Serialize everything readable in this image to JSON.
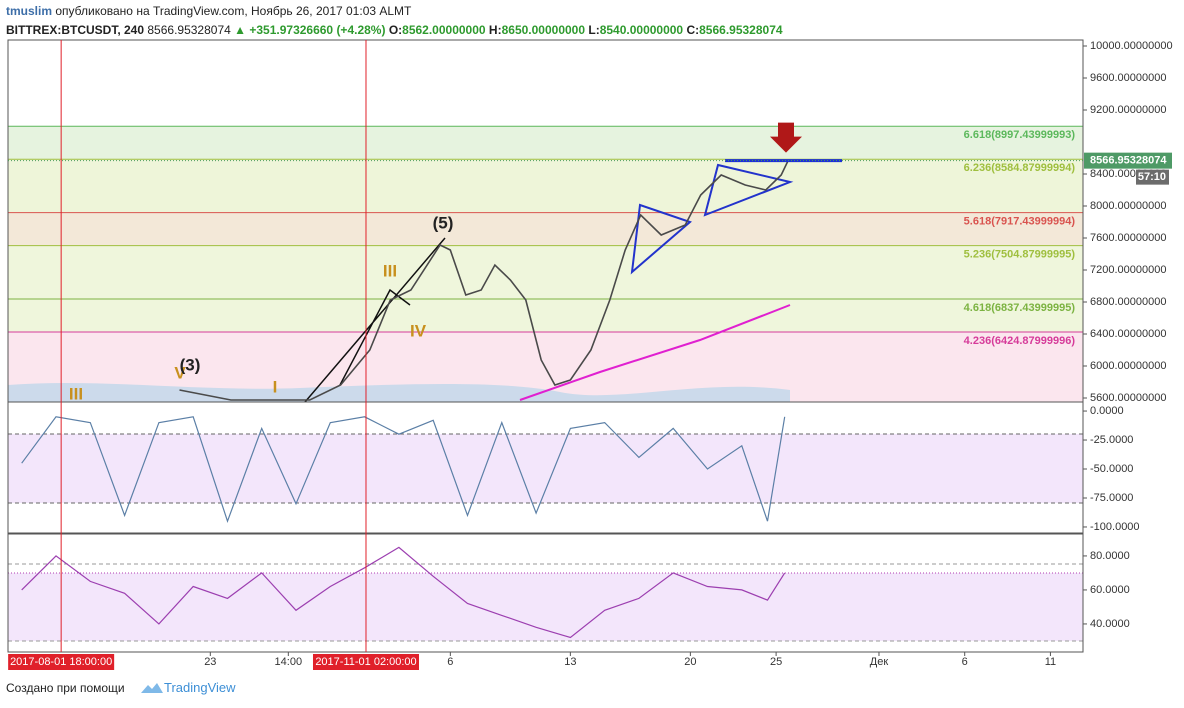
{
  "header": {
    "user": "tmuslim",
    "published": "опубликовано на TradingView.com, Ноябрь 26, 2017 01:03 ALMT",
    "symbol": "BITTREX:BTCUSDT, 240",
    "last": "8566.95328074",
    "change": "▲ +351.97326660 (+4.28%)",
    "o_label": "O:",
    "o": "8562.00000000",
    "h_label": "H:",
    "h": "8650.00000000",
    "l_label": "L:",
    "l": "8540.00000000",
    "c_label": "C:",
    "c": "8566.95328074"
  },
  "chart_data": [
    {
      "type": "line",
      "xlim": [
        -19.8,
        42.9
      ],
      "xticks": [
        {
          "value": -16.7,
          "label": "2017-08-01 18:00:00",
          "highlight": true
        },
        {
          "value": -8,
          "label": "23"
        },
        {
          "value": -3.45,
          "label": "14:00"
        },
        {
          "value": 1.08,
          "label": "2017-11-01 02:00:00",
          "highlight": true
        },
        6,
        13,
        20,
        25,
        {
          "value": 31,
          "label": "Дек"
        },
        {
          "value": 36,
          "label": "6"
        },
        {
          "value": 41,
          "label": "11"
        }
      ],
      "ylim": [
        5550,
        10075
      ],
      "yticks": [
        {
          "value": 10000,
          "label": "10000.00000000"
        },
        {
          "value": 9600,
          "label": "9600.00000000"
        },
        {
          "value": 9200,
          "label": "9200.00000000"
        },
        {
          "value": 8400,
          "label": "8400.00000000"
        },
        {
          "value": 8000,
          "label": "8000.00000000"
        },
        {
          "value": 7600,
          "label": "7600.00000000"
        },
        {
          "value": 7200,
          "label": "7200.00000000"
        },
        {
          "value": 6800,
          "label": "6800.00000000"
        },
        {
          "value": 6400,
          "label": "6400.00000000"
        },
        {
          "value": 6000,
          "label": "6000.00000000"
        },
        {
          "value": 5600,
          "label": "5600.00000000"
        }
      ],
      "x": [
        -9.8,
        -6.8,
        -2.2,
        -0.4,
        1.3,
        2.5,
        3.7,
        5.4,
        6,
        6.9,
        7.8,
        8.6,
        9.5,
        10.4,
        11.3,
        12.1,
        13,
        14.2,
        15.3,
        16.2,
        17.1,
        18.3,
        19.7,
        20.6,
        21.8,
        23.2,
        24.4,
        25.3,
        25.7
      ],
      "series": [
        {
          "name": "BTCUSDT",
          "color": "#4a4a4a",
          "values": [
            5700,
            5575,
            5575,
            5763,
            6200,
            6825,
            6950,
            7512,
            7450,
            6888,
            6950,
            7262,
            7075,
            6825,
            6075,
            5763,
            5825,
            6200,
            6825,
            7450,
            7887,
            7637,
            7762,
            8137,
            8387,
            8262,
            8200,
            8387,
            8566.95328074
          ]
        }
      ],
      "fib_levels": [
        {
          "value": 8997.43999993,
          "label": "6.618(8997.43999993)",
          "color": "#5cb85c",
          "fill": "#e6f3df"
        },
        {
          "value": 8584.87999994,
          "label": "6.236(8584.87999994)",
          "color": "#9fbf3f",
          "fill": "#eef5d9"
        },
        {
          "value": 7917.43999994,
          "label": "5.618(7917.43999994)",
          "color": "#d9534f",
          "fill": "#f3e8d8"
        },
        {
          "value": 7504.87999995,
          "label": "5.236(7504.87999995)",
          "color": "#9fbf3f",
          "fill": "#eff6dc"
        },
        {
          "value": 6837.43999995,
          "label": "4.618(6837.43999995)",
          "color": "#7cb342",
          "fill": "#eff6dc"
        },
        {
          "value": 6424.87999996,
          "label": "4.236(6424.87999996)",
          "color": "#d63c9a",
          "fill": "#fbe6ee"
        }
      ],
      "annotations": [
        "(5)",
        "III",
        "IV",
        "I",
        "V",
        "(3)",
        "III"
      ],
      "price_label": "8566.95328074",
      "countdown": "57:10"
    },
    {
      "type": "line",
      "ylim": [
        -105.2,
        7.8
      ],
      "yticks": [
        {
          "value": 0,
          "label": "0.0000"
        },
        {
          "value": -25,
          "label": "-25.0000"
        },
        {
          "value": -50,
          "label": "-50.0000"
        },
        {
          "value": -75,
          "label": "-75.0000"
        },
        {
          "value": -100,
          "label": "-100.0000"
        }
      ],
      "x": [
        -19,
        -17,
        -15,
        -13,
        -11,
        -9,
        -7,
        -5,
        -3,
        -1,
        1,
        3,
        5,
        7,
        9,
        11,
        13,
        15,
        17,
        19,
        21,
        23,
        24.5,
        25.5
      ],
      "series": [
        {
          "name": "%R",
          "color": "#5b7fa6",
          "values": [
            -45,
            -5,
            -10,
            -90,
            -10,
            -5,
            -95,
            -15,
            -80,
            -10,
            -5,
            -20,
            -8,
            -90,
            -10,
            -88,
            -15,
            -10,
            -40,
            -15,
            -50,
            -30,
            -95,
            -5
          ]
        }
      ]
    },
    {
      "type": "line",
      "ylim": [
        23.5,
        92.9
      ],
      "yticks": [
        {
          "value": 80,
          "label": "80.0000"
        },
        {
          "value": 60,
          "label": "60.0000"
        },
        {
          "value": 40,
          "label": "40.0000"
        }
      ],
      "x": [
        -19,
        -17,
        -15,
        -13,
        -11,
        -9,
        -7,
        -5,
        -3,
        -1,
        1,
        3,
        5,
        7,
        9,
        11,
        13,
        15,
        17,
        19,
        21,
        23,
        24.5,
        25.5
      ],
      "series": [
        {
          "name": "RSI",
          "color": "#9c3fb0",
          "values": [
            60,
            80,
            65,
            58,
            40,
            62,
            55,
            70,
            48,
            62,
            73,
            85,
            68,
            52,
            45,
            38,
            32,
            48,
            55,
            70,
            62,
            60,
            54,
            70
          ]
        }
      ]
    }
  ],
  "footer": {
    "made": "Создано при помощи",
    "brand": "TradingView"
  }
}
